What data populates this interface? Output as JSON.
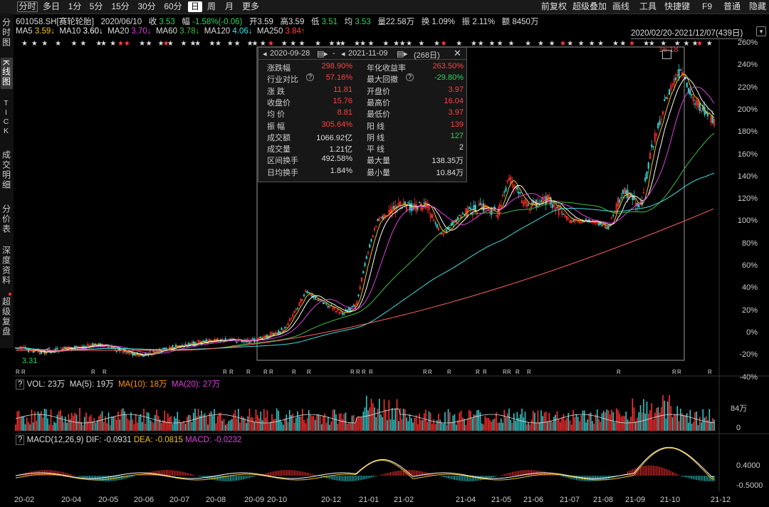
{
  "toolbar": {
    "periods": [
      "分时",
      "多日",
      "1分",
      "5分",
      "15分",
      "30分",
      "60分",
      "日",
      "周",
      "月",
      "更多"
    ],
    "active_period": "日",
    "right_tools": [
      "前复权",
      "超级叠加",
      "画线",
      "工具",
      "快捷键",
      "F9",
      "普通",
      "隐藏"
    ]
  },
  "left_tabs": [
    {
      "label": "分时图",
      "active": false
    },
    {
      "label": "K线图",
      "active": true
    },
    {
      "label": "TICK",
      "active": false
    },
    {
      "label": "成交明细",
      "active": false
    },
    {
      "label": "分价表",
      "active": false
    },
    {
      "label": "深度资料",
      "active": false
    },
    {
      "label": "超级复盘",
      "active": false
    }
  ],
  "quote": {
    "code_name": "601058.SH[赛轮轮胎]",
    "date": "2020/06/10",
    "close_label": "收",
    "close": "3.53",
    "change_label": "幅",
    "change": "-1.58%(-0.06)",
    "open_label": "开",
    "open": "3.59",
    "high_label": "高",
    "high": "3.59",
    "low_label": "低",
    "low": "3.51",
    "avg_label": "均",
    "avg": "3.53",
    "vol_label": "量",
    "vol": "22.58万",
    "turnover_label": "换",
    "turnover": "1.09%",
    "amp_label": "振",
    "amp": "2.11%",
    "amount_label": "额",
    "amount": "8450万"
  },
  "ma_row": {
    "items": [
      {
        "label": "MA5",
        "value": "3.59↓",
        "color": "#f5c518"
      },
      {
        "label": "MA10",
        "value": "3.60↓",
        "color": "#ffffff"
      },
      {
        "label": "MA20",
        "value": "3.70↓",
        "color": "#e040e0"
      },
      {
        "label": "MA60",
        "value": "3.78↓",
        "color": "#40c040"
      },
      {
        "label": "MA120",
        "value": "4.06↓",
        "color": "#40e0e0"
      },
      {
        "label": "MA250",
        "value": "3.84↑",
        "color": "#ff4040"
      }
    ],
    "range": "2020/02/20-2021/12/07(439日)"
  },
  "price_axis": [
    "260%",
    "240%",
    "220%",
    "200%",
    "180%",
    "160%",
    "140%",
    "120%",
    "100%",
    "80%",
    "60%",
    "40%",
    "20%",
    "0%",
    "-20%",
    "-40%"
  ],
  "chart_markers": {
    "low_label": "3.31",
    "high_label": "16.18"
  },
  "volume_panel": {
    "header_q": "?",
    "vol_label": "VOL: 23万",
    "ma5": "MA(5): 19万",
    "ma10": "MA(10): 18万",
    "ma20": "MA(20): 27万",
    "axis": [
      "84万",
      "0"
    ]
  },
  "macd_panel": {
    "header_q": "?",
    "title": "MACD(12,26,9)",
    "dif": "DIF: -0.0931",
    "dea": "DEA: -0.0815",
    "macd": "MACD: -0.0232",
    "axis": [
      "0.4000",
      "-0.5000"
    ]
  },
  "x_axis": [
    "20-02",
    "20-04",
    "20-05",
    "20-06",
    "20-07",
    "20-08",
    "20-09",
    "20-10",
    "20-12",
    "21-01",
    "21-02",
    "21-04",
    "21-05",
    "21-06",
    "21-07",
    "21-08",
    "21-09",
    "21-10",
    "21-12"
  ],
  "popup": {
    "start_date": "2020-09-28",
    "sep": "-",
    "end_date": "2021-11-09",
    "days": "(268日)",
    "rows": [
      {
        "l1": "涨跌幅",
        "v1": "298.90%",
        "c1": "#ff4040",
        "l2": "年化收益率",
        "v2": "263.50%",
        "c2": "#ff4040"
      },
      {
        "l1": "行业对比",
        "v1": "57.16%",
        "c1": "#ff4040",
        "l2": "最大回撤",
        "v2": "-29.80%",
        "c2": "#2fd55a"
      },
      {
        "l1": "涨  跌",
        "v1": "11.81",
        "c1": "#ff4040",
        "l2": "开盘价",
        "v2": "3.97",
        "c2": "#ff4040"
      },
      {
        "l1": "收盘价",
        "v1": "15.76",
        "c1": "#ff4040",
        "l2": "最高价",
        "v2": "16.04",
        "c2": "#ff4040"
      },
      {
        "l1": "均  价",
        "v1": "8.81",
        "c1": "#ff4040",
        "l2": "最低价",
        "v2": "3.97",
        "c2": "#ff4040"
      },
      {
        "l1": "振  幅",
        "v1": "305.64%",
        "c1": "#ff4040",
        "l2": "阳  线",
        "v2": "139",
        "c2": "#ff4040"
      },
      {
        "l1": "成交额",
        "v1": "1066.92亿",
        "c1": "#dddddd",
        "l2": "阴  线",
        "v2": "127",
        "c2": "#2fd55a"
      },
      {
        "l1": "成交量",
        "v1": "1.21亿",
        "c1": "#dddddd",
        "l2": "平  线",
        "v2": "2",
        "c2": "#dddddd"
      },
      {
        "l1": "区间换手",
        "v1": "492.58%",
        "c1": "#dddddd",
        "l2": "最大量",
        "v2": "138.35万",
        "c2": "#dddddd"
      },
      {
        "l1": "日均换手",
        "v1": "1.84%",
        "c1": "#dddddd",
        "l2": "最小量",
        "v2": "10.84万",
        "c2": "#dddddd"
      }
    ]
  },
  "colors": {
    "up": "#ff3030",
    "down": "#30c8c8",
    "bg": "#000000"
  }
}
